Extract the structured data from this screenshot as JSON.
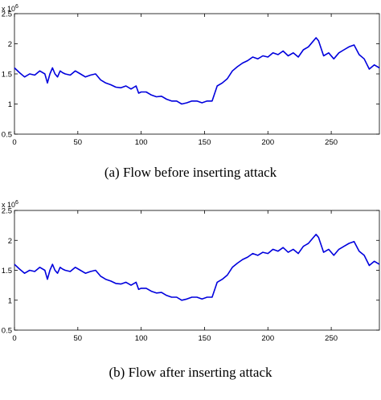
{
  "chart_data": [
    {
      "type": "line",
      "caption": "(a) Flow before inserting attack",
      "y_multiplier": "x 10",
      "y_multiplier_exp": "6",
      "xlim": [
        0,
        288
      ],
      "ylim": [
        0.5,
        2.5
      ],
      "x_ticks": [
        0,
        50,
        100,
        150,
        200,
        250
      ],
      "y_ticks": [
        0.5,
        1,
        1.5,
        2,
        2.5
      ],
      "y_tick_labels": [
        "0.5",
        "1",
        "1.5",
        "2",
        "2.5"
      ],
      "line_color": "#0000dd",
      "grid": false,
      "series": [
        {
          "x": [
            0,
            4,
            8,
            12,
            16,
            20,
            24,
            26,
            28,
            30,
            32,
            34,
            36,
            38,
            40,
            44,
            48,
            52,
            56,
            60,
            64,
            68,
            72,
            76,
            80,
            84,
            88,
            92,
            96,
            98,
            100,
            104,
            108,
            112,
            116,
            120,
            124,
            128,
            132,
            136,
            140,
            144,
            148,
            152,
            156,
            160,
            164,
            168,
            172,
            176,
            180,
            184,
            188,
            192,
            196,
            200,
            204,
            208,
            212,
            216,
            220,
            224,
            228,
            232,
            236,
            238,
            240,
            244,
            248,
            252,
            256,
            260,
            264,
            268,
            272,
            276,
            280,
            284,
            288
          ],
          "y": [
            1.6,
            1.52,
            1.45,
            1.5,
            1.48,
            1.55,
            1.5,
            1.35,
            1.5,
            1.6,
            1.5,
            1.45,
            1.55,
            1.52,
            1.5,
            1.48,
            1.55,
            1.5,
            1.45,
            1.48,
            1.5,
            1.4,
            1.35,
            1.32,
            1.28,
            1.27,
            1.3,
            1.25,
            1.3,
            1.18,
            1.2,
            1.2,
            1.15,
            1.12,
            1.13,
            1.08,
            1.05,
            1.05,
            1.0,
            1.02,
            1.05,
            1.05,
            1.02,
            1.05,
            1.05,
            1.3,
            1.35,
            1.42,
            1.55,
            1.62,
            1.68,
            1.72,
            1.78,
            1.75,
            1.8,
            1.78,
            1.85,
            1.82,
            1.88,
            1.8,
            1.85,
            1.78,
            1.9,
            1.95,
            2.05,
            2.1,
            2.05,
            1.8,
            1.85,
            1.75,
            1.85,
            1.9,
            1.95,
            1.98,
            1.82,
            1.75,
            1.58,
            1.65,
            1.6
          ]
        }
      ]
    },
    {
      "type": "line",
      "caption": "(b) Flow after inserting attack",
      "y_multiplier": "x 10",
      "y_multiplier_exp": "6",
      "xlim": [
        0,
        288
      ],
      "ylim": [
        0.5,
        2.5
      ],
      "x_ticks": [
        0,
        50,
        100,
        150,
        200,
        250
      ],
      "y_ticks": [
        0.5,
        1,
        1.5,
        2,
        2.5
      ],
      "y_tick_labels": [
        "0.5",
        "1",
        "1.5",
        "2",
        "2.5"
      ],
      "line_color": "#0000dd",
      "grid": false,
      "series": [
        {
          "x": [
            0,
            4,
            8,
            12,
            16,
            20,
            24,
            26,
            28,
            30,
            32,
            34,
            36,
            38,
            40,
            44,
            48,
            52,
            56,
            60,
            64,
            68,
            72,
            76,
            80,
            84,
            88,
            92,
            96,
            98,
            100,
            104,
            108,
            112,
            116,
            120,
            124,
            128,
            132,
            136,
            140,
            144,
            148,
            152,
            156,
            160,
            164,
            168,
            172,
            176,
            180,
            184,
            188,
            192,
            196,
            200,
            204,
            208,
            212,
            216,
            220,
            224,
            228,
            232,
            236,
            238,
            240,
            244,
            248,
            252,
            256,
            260,
            264,
            268,
            272,
            276,
            280,
            284,
            288
          ],
          "y": [
            1.6,
            1.52,
            1.45,
            1.5,
            1.48,
            1.55,
            1.5,
            1.35,
            1.5,
            1.6,
            1.5,
            1.45,
            1.55,
            1.52,
            1.5,
            1.48,
            1.55,
            1.5,
            1.45,
            1.48,
            1.5,
            1.4,
            1.35,
            1.32,
            1.28,
            1.27,
            1.3,
            1.25,
            1.3,
            1.18,
            1.2,
            1.2,
            1.15,
            1.12,
            1.13,
            1.08,
            1.05,
            1.05,
            1.0,
            1.02,
            1.05,
            1.05,
            1.02,
            1.05,
            1.05,
            1.3,
            1.35,
            1.42,
            1.55,
            1.62,
            1.68,
            1.72,
            1.78,
            1.75,
            1.8,
            1.78,
            1.85,
            1.82,
            1.88,
            1.8,
            1.85,
            1.78,
            1.9,
            1.95,
            2.05,
            2.1,
            2.05,
            1.8,
            1.85,
            1.75,
            1.85,
            1.9,
            1.95,
            1.98,
            1.82,
            1.75,
            1.58,
            1.65,
            1.6
          ]
        }
      ]
    }
  ]
}
